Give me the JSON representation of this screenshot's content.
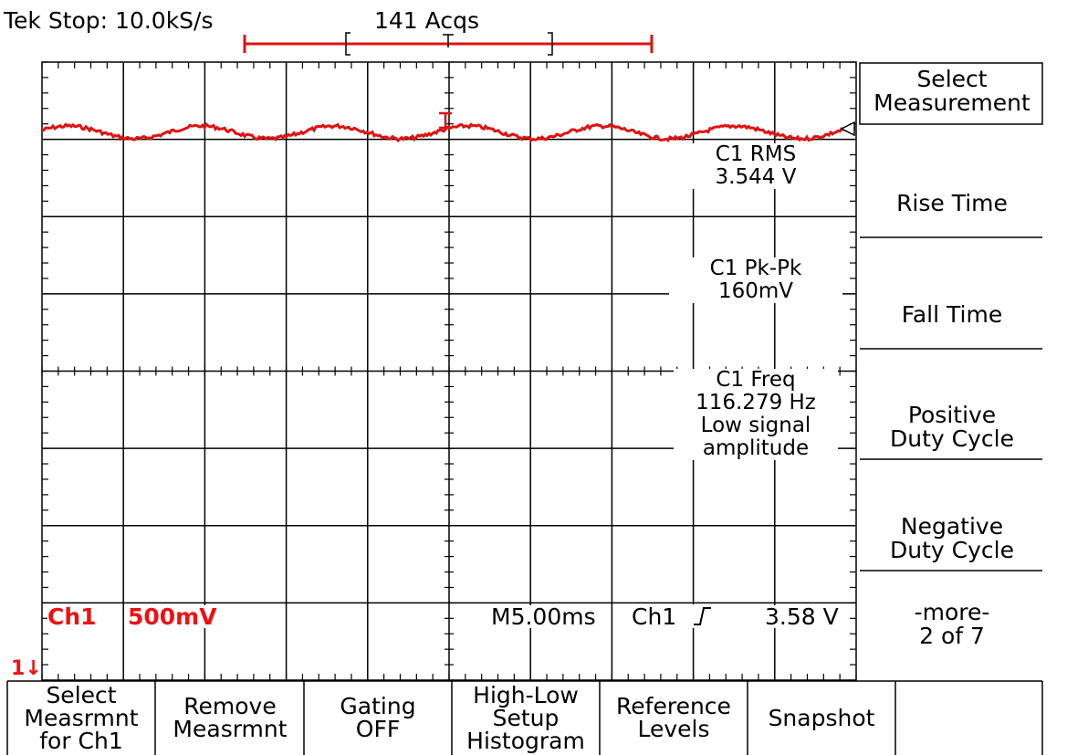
{
  "header": {
    "status": "Tek Stop: 10.0kS/s",
    "acquisitions": "141 Acqs"
  },
  "measurements": [
    {
      "label": "C1 RMS",
      "value": "3.544 V"
    },
    {
      "label": "C1 Pk-Pk",
      "value": "160mV"
    },
    {
      "label": "C1 Freq",
      "value": "116.279 Hz",
      "note1": "Low signal",
      "note2": "amplitude"
    }
  ],
  "status_bar": {
    "channel": "Ch1",
    "volts_div": "500mV",
    "timebase": "M5.00ms",
    "trigger_source": "Ch1",
    "trigger_level": "3.58 V"
  },
  "ground_marker": "1",
  "side_menu": {
    "title_line1": "Select",
    "title_line2": "Measurement",
    "items": [
      {
        "line1": "Rise Time",
        "line2": ""
      },
      {
        "line1": "Fall Time",
        "line2": ""
      },
      {
        "line1": "Positive",
        "line2": "Duty Cycle"
      },
      {
        "line1": "Negative",
        "line2": "Duty Cycle"
      },
      {
        "line1": "-more-",
        "line2": "2 of 7"
      }
    ]
  },
  "bottom_menu": [
    {
      "line1": "Select",
      "line2": "Measrmnt",
      "line3": "for Ch1"
    },
    {
      "line1": "Remove",
      "line2": "Measrmnt",
      "line3": ""
    },
    {
      "line1": "Gating",
      "line2": "OFF",
      "line3": ""
    },
    {
      "line1": "High-Low",
      "line2": "Setup",
      "line3": "Histogram"
    },
    {
      "line1": "Reference",
      "line2": "Levels",
      "line3": ""
    },
    {
      "line1": "Snapshot",
      "line2": "",
      "line3": ""
    }
  ],
  "colors": {
    "trace": "#e11111",
    "graticule": "#000000",
    "background": "#ffffff"
  }
}
